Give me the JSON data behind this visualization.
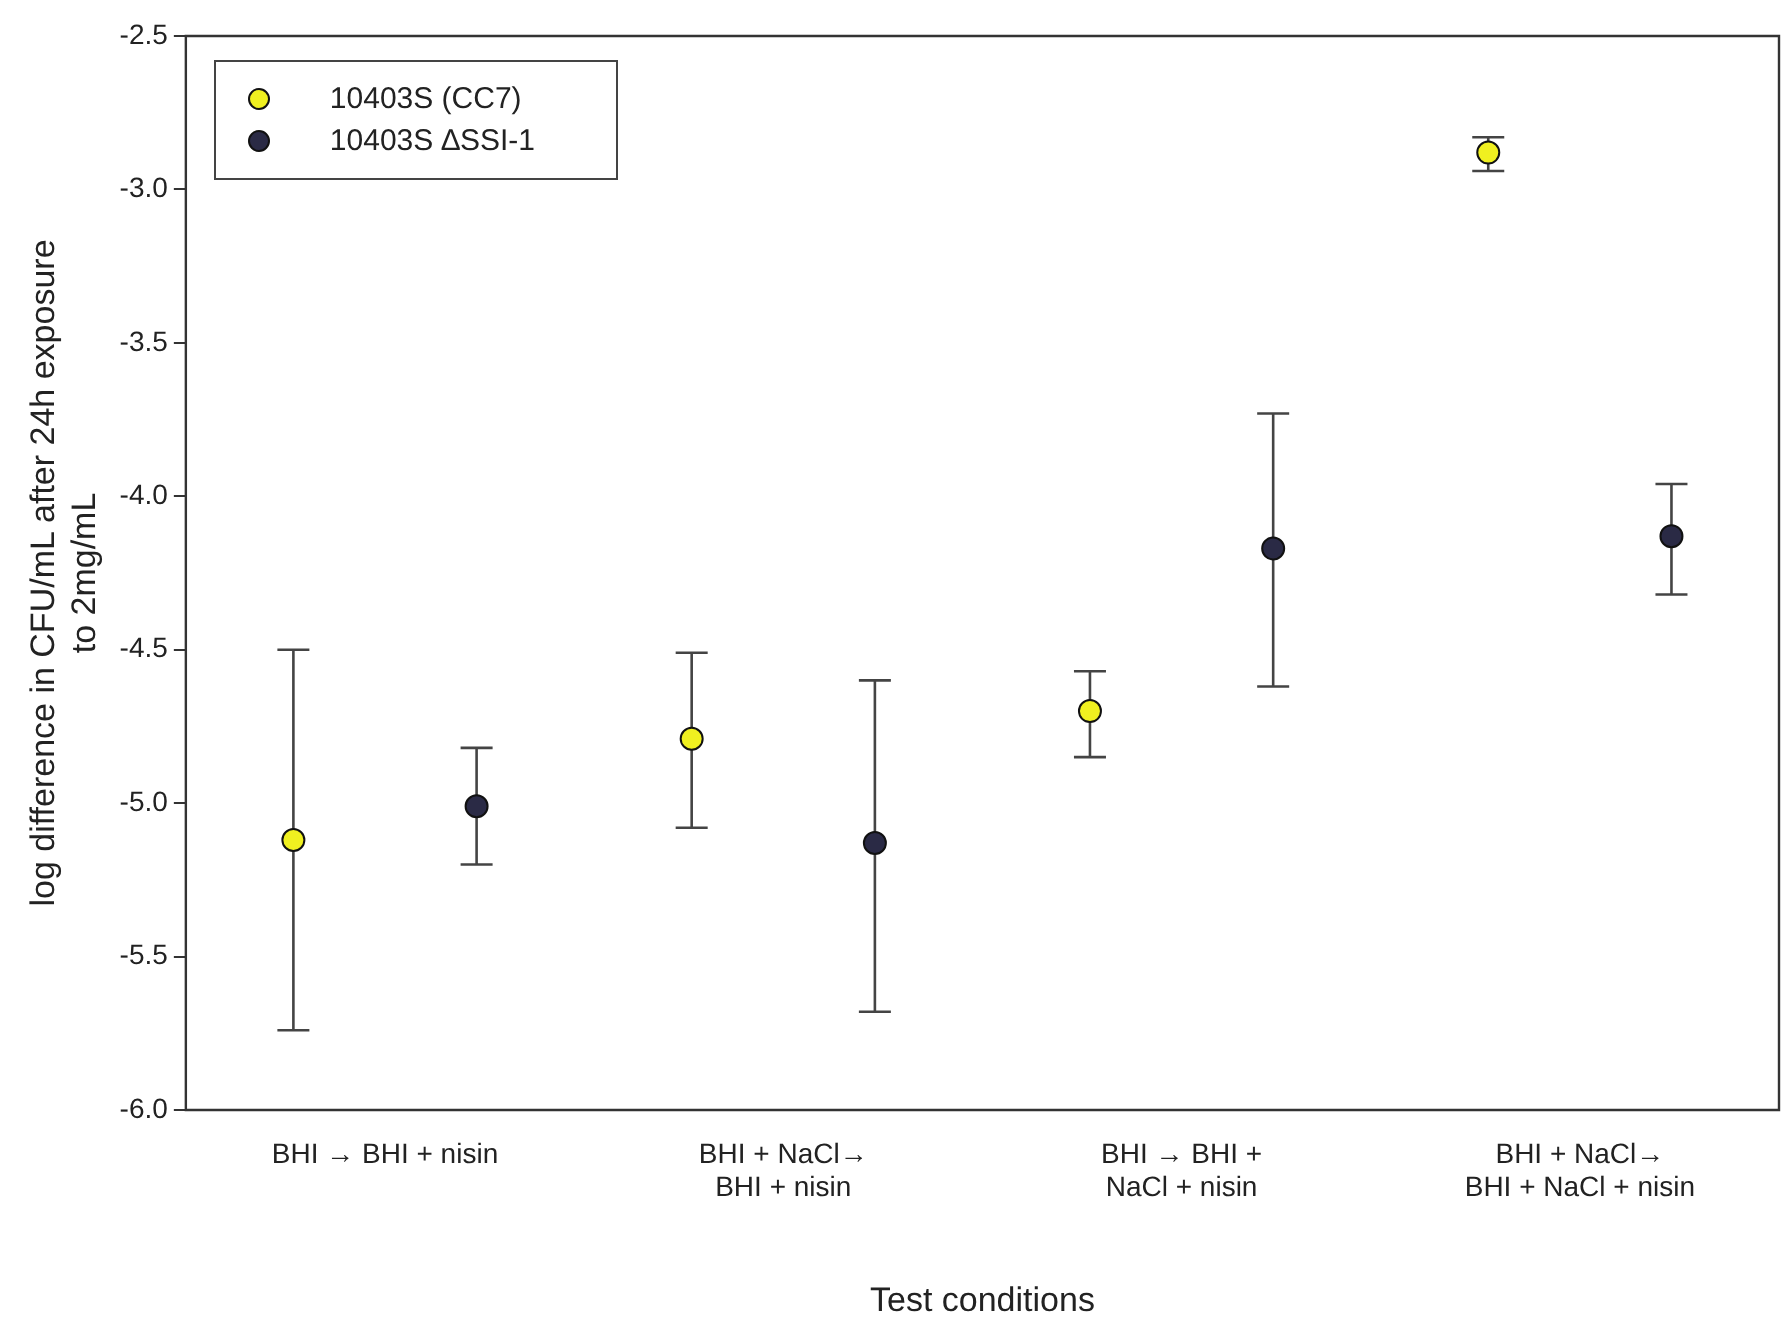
{
  "chart_data": {
    "type": "scatter",
    "xlabel": "Test conditions",
    "ylabel": "log difference in CFU/mL after 24h exposure\nto 2mg/mL",
    "categories": [
      "BHI → BHI + nisin",
      "BHI + NaCl→\nBHI + nisin",
      "BHI → BHI +\nNaCl + nisin",
      "BHI + NaCl→\nBHI + NaCl + nisin"
    ],
    "series": [
      {
        "name": "10403S (CC7)",
        "color": "#f0f020",
        "values": [
          -5.12,
          -4.79,
          -4.7,
          -2.88
        ],
        "errors": [
          [
            -5.74,
            -4.5
          ],
          [
            -5.08,
            -4.51
          ],
          [
            -4.85,
            -4.57
          ],
          [
            -2.94,
            -2.83
          ]
        ]
      },
      {
        "name": "10403S ∆SSI-1",
        "color": "#2a2a45",
        "values": [
          -5.01,
          -5.13,
          -4.17,
          -4.13
        ],
        "errors": [
          [
            -5.2,
            -4.82
          ],
          [
            -5.68,
            -4.6
          ],
          [
            -4.62,
            -3.73
          ],
          [
            -4.32,
            -3.96
          ]
        ]
      }
    ],
    "ylim": [
      -6.0,
      -2.5
    ],
    "yticks": [
      {
        "value": -6.0,
        "label": "-6.0"
      },
      {
        "value": -5.5,
        "label": "-5.5"
      },
      {
        "value": -5.0,
        "label": "-5.0"
      },
      {
        "value": -4.5,
        "label": "-4.5"
      },
      {
        "value": -4.0,
        "label": "-4.0"
      },
      {
        "value": -3.5,
        "label": "-3.5"
      },
      {
        "value": -3.0,
        "label": "-3.0"
      },
      {
        "value": -2.5,
        "label": "-2.5"
      }
    ],
    "grid": false,
    "legend": "top left",
    "marker": "circle"
  }
}
